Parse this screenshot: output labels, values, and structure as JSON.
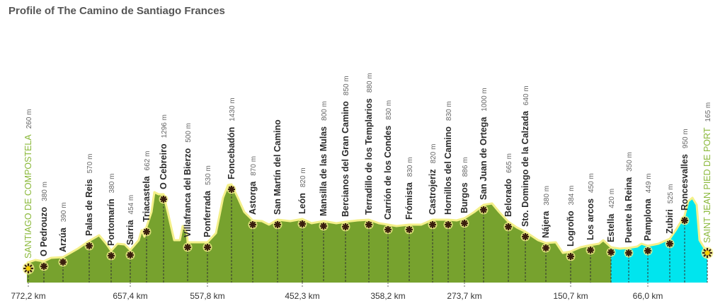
{
  "title": "Profile of The Camino de Santiago Frances",
  "chart_data": {
    "type": "area",
    "title": "Profile of The Camino de Santiago Frances",
    "colors": {
      "profile": "#77a22e",
      "outline": "#f4f08a",
      "final_section": "#00e5ee",
      "marker": "#3a1e0e",
      "endpoint": "#f5d000",
      "end_label": "#8ab83a"
    },
    "stops": [
      {
        "name": "SANTIAGO DE COMPOSTELA",
        "elevation": "260 m",
        "endpoint": true
      },
      {
        "name": "O Pedrouzo",
        "elevation": "380 m"
      },
      {
        "name": "Arzúa",
        "elevation": "390 m"
      },
      {
        "name": "Palas de Reis",
        "elevation": "570 m"
      },
      {
        "name": "Portomarín",
        "elevation": "380 m"
      },
      {
        "name": "Sarria",
        "elevation": "454 m"
      },
      {
        "name": "Triacastela",
        "elevation": "662 m"
      },
      {
        "name": "O Cebreiro",
        "elevation": "1296 m"
      },
      {
        "name": "Villafranca del Bierzo",
        "elevation": "500 m"
      },
      {
        "name": "Ponferrada",
        "elevation": "530 m"
      },
      {
        "name": "Foncebadón",
        "elevation": "1430 m"
      },
      {
        "name": "Astorga",
        "elevation": "870 m"
      },
      {
        "name": "San Martín del Camino",
        "elevation": ""
      },
      {
        "name": "León",
        "elevation": "820 m"
      },
      {
        "name": "Mansilla de las Mulas",
        "elevation": "800 m"
      },
      {
        "name": "Bercianos del Gran Camino",
        "elevation": "850 m"
      },
      {
        "name": "Terradillo de los Templarios",
        "elevation": "880 m"
      },
      {
        "name": "Carrión de los Condes",
        "elevation": "830 m"
      },
      {
        "name": "Frómista",
        "elevation": "830 m"
      },
      {
        "name": "Castrojeriz",
        "elevation": "820 m"
      },
      {
        "name": "Hornillos del Camino",
        "elevation": "830 m"
      },
      {
        "name": "Burgos",
        "elevation": "886 m"
      },
      {
        "name": "San Juan de Ortega",
        "elevation": "1000 m"
      },
      {
        "name": "Belorado",
        "elevation": "665 m"
      },
      {
        "name": "Sto. Domingo de la Calzada",
        "elevation": "640 m"
      },
      {
        "name": "Nájera",
        "elevation": "380 m"
      },
      {
        "name": "Logroño",
        "elevation": "384 m"
      },
      {
        "name": "Los arcos",
        "elevation": "450 m"
      },
      {
        "name": "Estella",
        "elevation": "420 m"
      },
      {
        "name": "Puente la Reina",
        "elevation": "350 m"
      },
      {
        "name": "Pamplona",
        "elevation": "449 m"
      },
      {
        "name": "Zubiri",
        "elevation": "525 m"
      },
      {
        "name": "Roncesvalles",
        "elevation": "950 m"
      },
      {
        "name": "SAINT JEAN PIED DE PORT",
        "elevation": "165 m",
        "endpoint": true
      }
    ],
    "distance_ticks": [
      "772,2 km",
      "657,4 km",
      "557,8 km",
      "452,3 km",
      "358,2 km",
      "273,7 km",
      "150,7 km",
      "66,0 km"
    ]
  }
}
